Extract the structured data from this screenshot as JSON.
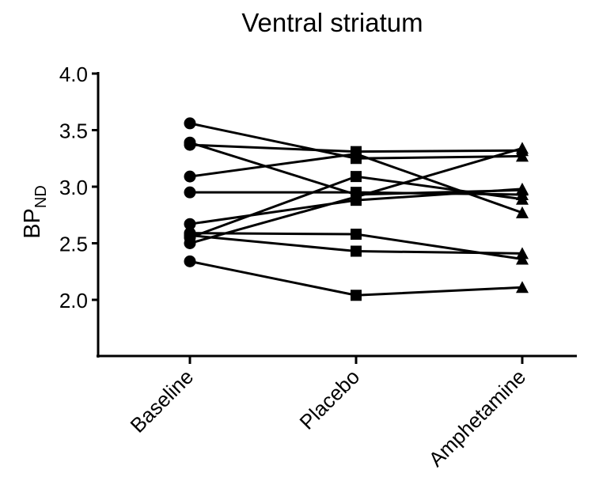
{
  "chart_data": {
    "type": "line",
    "title": "Ventral striatum",
    "ylabel_main": "BP",
    "ylabel_sub": "ND",
    "xlabel": "",
    "categories": [
      "Baseline",
      "Placebo",
      "Amphetamine"
    ],
    "markers": [
      "circle",
      "square",
      "triangle"
    ],
    "ylim": [
      1.5,
      4.0
    ],
    "yticks": [
      "2.0",
      "2.5",
      "3.0",
      "3.5",
      "4.0"
    ],
    "grid": false,
    "series": [
      {
        "values": [
          3.56,
          3.25,
          3.27
        ]
      },
      {
        "values": [
          3.39,
          2.93,
          2.97
        ]
      },
      {
        "values": [
          3.37,
          3.31,
          3.32
        ]
      },
      {
        "values": [
          3.09,
          3.29,
          2.77
        ]
      },
      {
        "values": [
          2.95,
          2.95,
          2.93
        ]
      },
      {
        "values": [
          2.67,
          2.88,
          2.98
        ]
      },
      {
        "values": [
          2.59,
          2.58,
          2.36
        ]
      },
      {
        "values": [
          2.55,
          3.09,
          2.89
        ]
      },
      {
        "values": [
          2.5,
          2.91,
          3.34
        ]
      },
      {
        "values": [
          2.57,
          2.43,
          2.41
        ]
      },
      {
        "values": [
          2.34,
          2.04,
          2.11
        ]
      }
    ]
  }
}
